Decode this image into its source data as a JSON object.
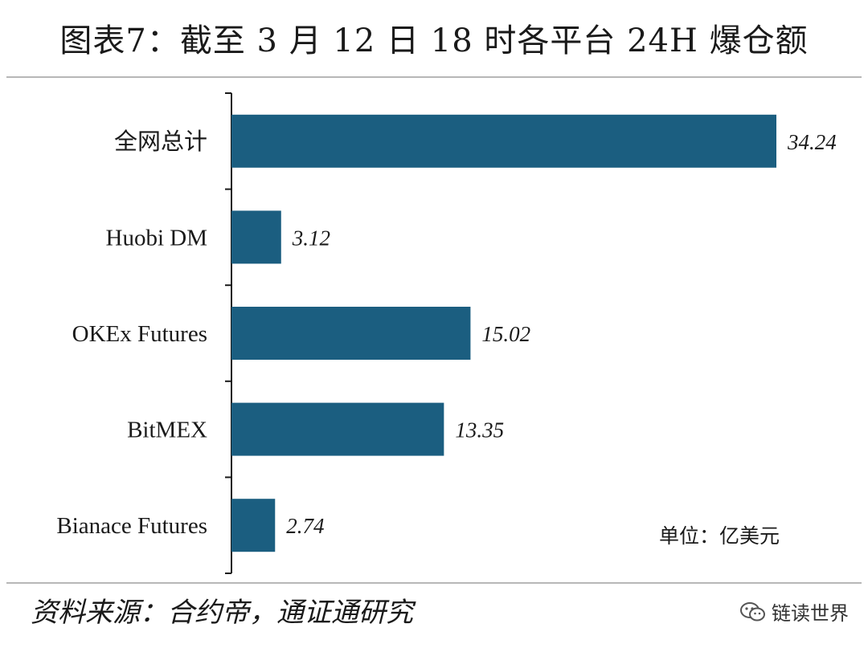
{
  "title": "图表7：截至 3 月 12 日 18 时各平台 24H 爆仓额",
  "unit_label": "单位：亿美元",
  "source": "资料来源：合约帝，通证通研究",
  "brand": "链读世界",
  "colors": {
    "bar": "#1b5e80",
    "axis": "#1a1a1a"
  },
  "chart_data": {
    "type": "bar",
    "orientation": "horizontal",
    "categories": [
      "全网总计",
      "Huobi DM",
      "OKEx Futures",
      "BitMEX",
      "Bianace Futures"
    ],
    "values": [
      34.24,
      3.12,
      15.02,
      13.35,
      2.74
    ],
    "value_labels": [
      "34.24",
      "3.12",
      "15.02",
      "13.35",
      "2.74"
    ],
    "title": "图表7：截至 3 月 12 日 18 时各平台 24H 爆仓额",
    "xlim": [
      0,
      34.24
    ],
    "grid": false,
    "legend": "none"
  }
}
